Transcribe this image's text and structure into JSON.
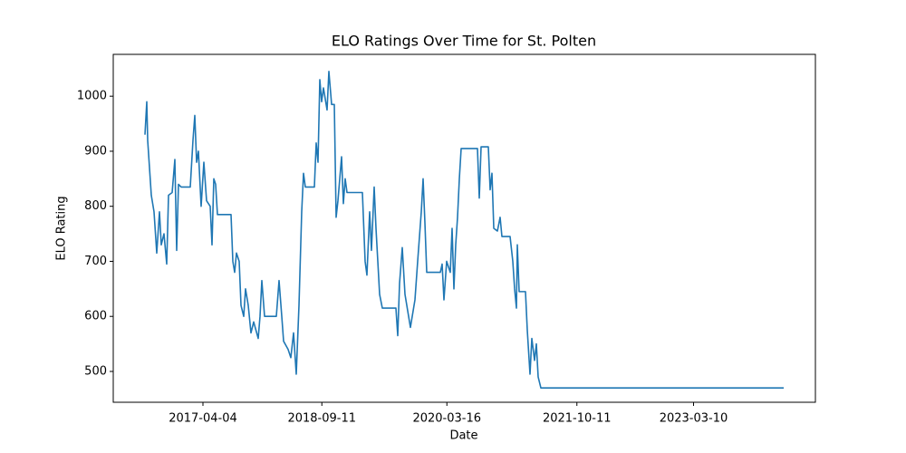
{
  "chart_data": {
    "type": "line",
    "title": "ELO Ratings Over Time for St. Polten",
    "xlabel": "Date",
    "ylabel": "ELO Rating",
    "color": "#1f77b4",
    "grid": false,
    "xlim": [
      "2016-03-04",
      "2024-08-29"
    ],
    "xticks": [
      "2017-04-04",
      "2018-09-11",
      "2020-03-16",
      "2021-10-11",
      "2023-03-10"
    ],
    "ylim": [
      444,
      1076
    ],
    "yticks": [
      500,
      600,
      700,
      800,
      900,
      1000
    ],
    "x": [
      "2016-07-22",
      "2016-07-30",
      "2016-08-03",
      "2016-08-11",
      "2016-08-19",
      "2016-08-31",
      "2016-09-12",
      "2016-09-24",
      "2016-10-02",
      "2016-10-14",
      "2016-10-26",
      "2016-11-03",
      "2016-11-19",
      "2016-12-01",
      "2016-12-09",
      "2016-12-17",
      "2016-12-29",
      "2017-02-07",
      "2017-02-19",
      "2017-02-27",
      "2017-03-07",
      "2017-03-15",
      "2017-03-27",
      "2017-04-08",
      "2017-04-20",
      "2017-05-06",
      "2017-05-14",
      "2017-05-22",
      "2017-05-30",
      "2017-06-07",
      "2017-08-06",
      "2017-08-14",
      "2017-08-22",
      "2017-08-30",
      "2017-09-11",
      "2017-09-19",
      "2017-10-01",
      "2017-10-09",
      "2017-10-21",
      "2017-11-02",
      "2017-11-14",
      "2017-12-04",
      "2017-12-12",
      "2017-12-20",
      "2018-01-01",
      "2018-02-22",
      "2018-03-06",
      "2018-03-18",
      "2018-03-26",
      "2018-04-15",
      "2018-04-27",
      "2018-05-09",
      "2018-05-21",
      "2018-06-02",
      "2018-06-14",
      "2018-06-22",
      "2018-06-30",
      "2018-08-09",
      "2018-08-17",
      "2018-08-25",
      "2018-09-02",
      "2018-09-10",
      "2018-09-18",
      "2018-10-04",
      "2018-10-12",
      "2018-10-24",
      "2018-11-05",
      "2018-11-13",
      "2018-11-21",
      "2018-12-07",
      "2018-12-15",
      "2018-12-23",
      "2018-12-31",
      "2019-03-09",
      "2019-03-21",
      "2019-03-29",
      "2019-04-10",
      "2019-04-18",
      "2019-04-30",
      "2019-05-08",
      "2019-05-16",
      "2019-05-24",
      "2019-06-05",
      "2019-08-04",
      "2019-08-12",
      "2019-08-20",
      "2019-09-01",
      "2019-09-13",
      "2019-09-25",
      "2019-10-07",
      "2019-10-27",
      "2019-11-08",
      "2019-11-24",
      "2019-12-02",
      "2019-12-10",
      "2019-12-18",
      "2020-02-16",
      "2020-02-24",
      "2020-03-03",
      "2020-03-15",
      "2020-03-31",
      "2020-04-08",
      "2020-04-16",
      "2020-04-24",
      "2020-05-02",
      "2020-05-10",
      "2020-05-18",
      "2020-07-29",
      "2020-08-06",
      "2020-08-14",
      "2020-09-15",
      "2020-09-23",
      "2020-10-01",
      "2020-10-09",
      "2020-10-25",
      "2020-11-06",
      "2020-11-14",
      "2020-12-20",
      "2021-01-01",
      "2021-01-09",
      "2021-01-17",
      "2021-01-21",
      "2021-01-29",
      "2021-02-26",
      "2021-03-06",
      "2021-03-18",
      "2021-03-26",
      "2021-04-07",
      "2021-04-15",
      "2021-04-23",
      "2021-05-05",
      "2024-04-11"
    ],
    "values": [
      930,
      990,
      920,
      870,
      820,
      790,
      715,
      790,
      730,
      750,
      695,
      820,
      825,
      885,
      720,
      840,
      835,
      835,
      920,
      965,
      880,
      900,
      800,
      880,
      810,
      800,
      730,
      850,
      840,
      785,
      785,
      700,
      680,
      715,
      700,
      620,
      600,
      650,
      620,
      570,
      590,
      560,
      600,
      665,
      600,
      600,
      665,
      600,
      555,
      540,
      525,
      570,
      495,
      620,
      790,
      860,
      835,
      835,
      915,
      880,
      1030,
      990,
      1015,
      975,
      1045,
      985,
      985,
      780,
      810,
      890,
      805,
      850,
      825,
      825,
      700,
      675,
      790,
      720,
      835,
      760,
      700,
      640,
      615,
      615,
      565,
      660,
      725,
      640,
      610,
      580,
      630,
      700,
      790,
      850,
      770,
      680,
      680,
      695,
      630,
      700,
      680,
      760,
      650,
      730,
      780,
      850,
      905,
      905,
      815,
      908,
      908,
      830,
      860,
      760,
      755,
      780,
      745,
      745,
      700,
      650,
      615,
      730,
      645,
      645,
      575,
      495,
      560,
      520,
      550,
      490,
      470,
      470
    ]
  }
}
